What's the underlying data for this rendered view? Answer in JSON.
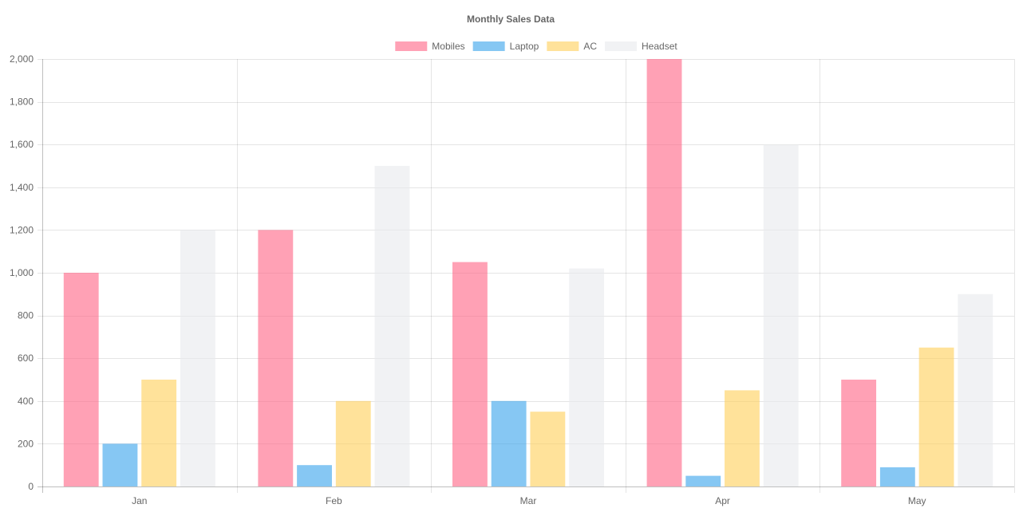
{
  "chart_data": {
    "type": "bar",
    "title": "Monthly Sales Data",
    "categories": [
      "Jan",
      "Feb",
      "Mar",
      "Apr",
      "May"
    ],
    "series": [
      {
        "name": "Mobiles",
        "values": [
          1000,
          1200,
          1050,
          2000,
          500
        ],
        "color": "#FF6384"
      },
      {
        "name": "Laptop",
        "values": [
          200,
          100,
          400,
          50,
          90
        ],
        "color": "#36A2EB"
      },
      {
        "name": "AC",
        "values": [
          500,
          400,
          350,
          450,
          650
        ],
        "color": "#FFCE56"
      },
      {
        "name": "Headset",
        "values": [
          1200,
          1500,
          1020,
          1600,
          900
        ],
        "color": "#E7E9ED"
      }
    ],
    "ylim": [
      0,
      2000
    ],
    "y_ticks": [
      "0",
      "200",
      "400",
      "600",
      "800",
      "1,000",
      "1,200",
      "1,400",
      "1,600",
      "1,800",
      "2,000"
    ],
    "grid": true,
    "legend_position": "top"
  }
}
